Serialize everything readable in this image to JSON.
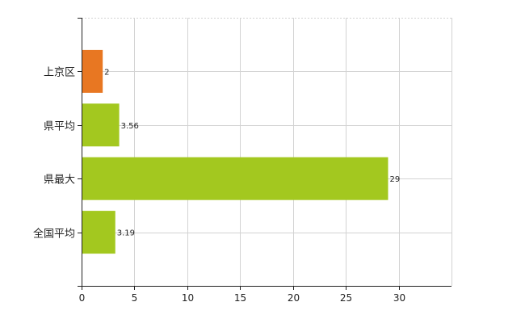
{
  "chart_data": {
    "type": "bar",
    "orientation": "horizontal",
    "categories": [
      "上京区",
      "県平均",
      "県最大",
      "全国平均"
    ],
    "values": [
      2,
      3.56,
      29,
      3.19
    ],
    "value_labels": [
      "2",
      "3.56",
      "29",
      "3.19"
    ],
    "bar_colors": [
      "#E87722",
      "#A3C81F",
      "#A3C81F",
      "#A3C81F"
    ],
    "xlim": [
      0,
      35
    ],
    "xticks": [
      0,
      5,
      10,
      15,
      20,
      25,
      30
    ],
    "xtick_labels": [
      "0",
      "5",
      "10",
      "15",
      "20",
      "25",
      "30"
    ],
    "title": "",
    "xlabel": "",
    "ylabel": "",
    "grid": true,
    "grid_color": "#d3d3d3"
  }
}
